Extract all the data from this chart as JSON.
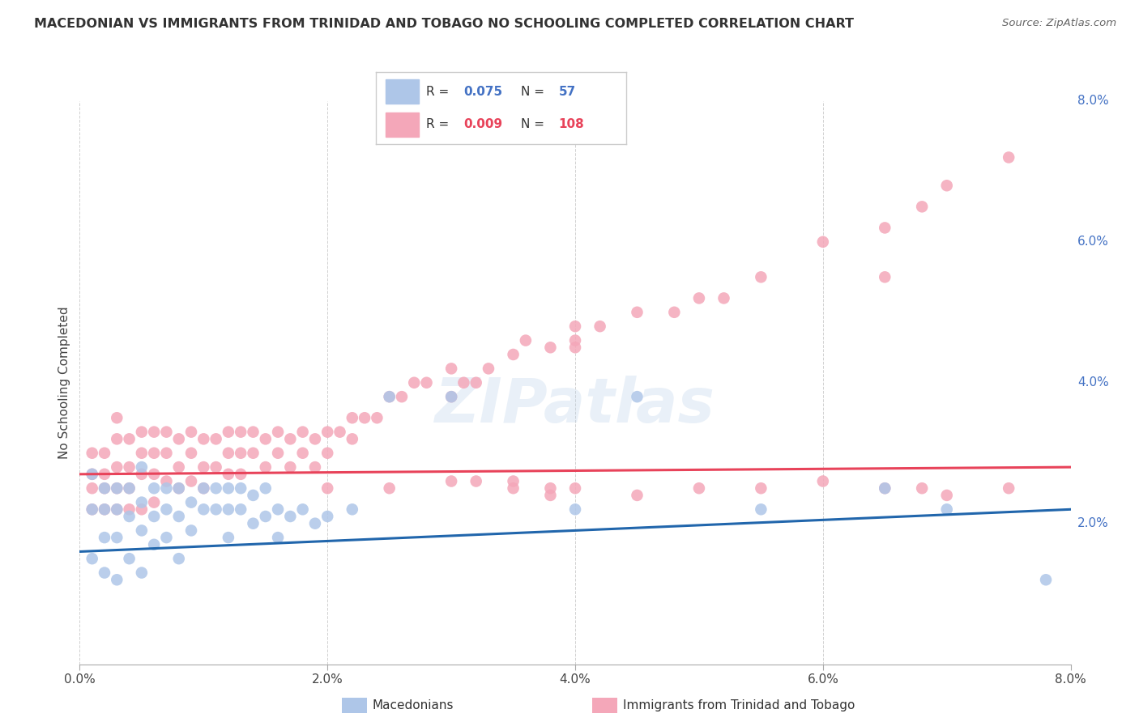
{
  "title": "MACEDONIAN VS IMMIGRANTS FROM TRINIDAD AND TOBAGO NO SCHOOLING COMPLETED CORRELATION CHART",
  "source": "Source: ZipAtlas.com",
  "ylabel": "No Schooling Completed",
  "xlim": [
    0.0,
    0.08
  ],
  "ylim": [
    0.0,
    0.08
  ],
  "xtick_vals": [
    0.0,
    0.02,
    0.04,
    0.06,
    0.08
  ],
  "xtick_labels": [
    "0.0%",
    "2.0%",
    "4.0%",
    "6.0%",
    "8.0%"
  ],
  "ytick_vals": [
    0.02,
    0.04,
    0.06,
    0.08
  ],
  "ytick_labels": [
    "2.0%",
    "4.0%",
    "6.0%",
    "8.0%"
  ],
  "series": [
    {
      "label": "Macedonians",
      "R": 0.075,
      "N": 57,
      "color": "#aec6e8",
      "line_color": "#2166ac",
      "line_x0": 0.0,
      "line_y0": 0.016,
      "line_x1": 0.08,
      "line_y1": 0.022
    },
    {
      "label": "Immigrants from Trinidad and Tobago",
      "R": 0.009,
      "N": 108,
      "color": "#f4a7b9",
      "line_color": "#e8435a",
      "line_x0": 0.0,
      "line_y0": 0.027,
      "line_x1": 0.08,
      "line_y1": 0.028
    }
  ],
  "blue_x": [
    0.001,
    0.001,
    0.001,
    0.002,
    0.002,
    0.002,
    0.002,
    0.003,
    0.003,
    0.003,
    0.003,
    0.004,
    0.004,
    0.004,
    0.005,
    0.005,
    0.005,
    0.005,
    0.006,
    0.006,
    0.006,
    0.007,
    0.007,
    0.007,
    0.008,
    0.008,
    0.008,
    0.009,
    0.009,
    0.01,
    0.01,
    0.011,
    0.011,
    0.012,
    0.012,
    0.012,
    0.013,
    0.013,
    0.014,
    0.014,
    0.015,
    0.015,
    0.016,
    0.016,
    0.017,
    0.018,
    0.019,
    0.02,
    0.022,
    0.025,
    0.03,
    0.04,
    0.045,
    0.055,
    0.065,
    0.07,
    0.078
  ],
  "blue_y": [
    0.027,
    0.022,
    0.015,
    0.025,
    0.022,
    0.018,
    0.013,
    0.025,
    0.022,
    0.018,
    0.012,
    0.025,
    0.021,
    0.015,
    0.028,
    0.023,
    0.019,
    0.013,
    0.025,
    0.021,
    0.017,
    0.025,
    0.022,
    0.018,
    0.025,
    0.021,
    0.015,
    0.023,
    0.019,
    0.025,
    0.022,
    0.025,
    0.022,
    0.025,
    0.022,
    0.018,
    0.025,
    0.022,
    0.024,
    0.02,
    0.025,
    0.021,
    0.022,
    0.018,
    0.021,
    0.022,
    0.02,
    0.021,
    0.022,
    0.038,
    0.038,
    0.022,
    0.038,
    0.022,
    0.025,
    0.022,
    0.012
  ],
  "pink_x": [
    0.001,
    0.001,
    0.001,
    0.001,
    0.002,
    0.002,
    0.002,
    0.002,
    0.003,
    0.003,
    0.003,
    0.003,
    0.003,
    0.004,
    0.004,
    0.004,
    0.004,
    0.005,
    0.005,
    0.005,
    0.005,
    0.006,
    0.006,
    0.006,
    0.006,
    0.007,
    0.007,
    0.007,
    0.008,
    0.008,
    0.008,
    0.009,
    0.009,
    0.009,
    0.01,
    0.01,
    0.01,
    0.011,
    0.011,
    0.012,
    0.012,
    0.012,
    0.013,
    0.013,
    0.013,
    0.014,
    0.014,
    0.015,
    0.015,
    0.016,
    0.016,
    0.017,
    0.017,
    0.018,
    0.018,
    0.019,
    0.019,
    0.02,
    0.02,
    0.021,
    0.022,
    0.022,
    0.023,
    0.024,
    0.025,
    0.026,
    0.027,
    0.028,
    0.03,
    0.03,
    0.031,
    0.032,
    0.033,
    0.035,
    0.036,
    0.038,
    0.04,
    0.042,
    0.045,
    0.048,
    0.05,
    0.052,
    0.055,
    0.06,
    0.065,
    0.068,
    0.07,
    0.075,
    0.04,
    0.04,
    0.032,
    0.035,
    0.038,
    0.038,
    0.04,
    0.045,
    0.05,
    0.055,
    0.06,
    0.065,
    0.065,
    0.068,
    0.07,
    0.075,
    0.02,
    0.025,
    0.03,
    0.035
  ],
  "pink_y": [
    0.03,
    0.027,
    0.025,
    0.022,
    0.03,
    0.027,
    0.025,
    0.022,
    0.035,
    0.032,
    0.028,
    0.025,
    0.022,
    0.032,
    0.028,
    0.025,
    0.022,
    0.033,
    0.03,
    0.027,
    0.022,
    0.033,
    0.03,
    0.027,
    0.023,
    0.033,
    0.03,
    0.026,
    0.032,
    0.028,
    0.025,
    0.033,
    0.03,
    0.026,
    0.032,
    0.028,
    0.025,
    0.032,
    0.028,
    0.033,
    0.03,
    0.027,
    0.033,
    0.03,
    0.027,
    0.033,
    0.03,
    0.032,
    0.028,
    0.033,
    0.03,
    0.032,
    0.028,
    0.033,
    0.03,
    0.032,
    0.028,
    0.033,
    0.03,
    0.033,
    0.035,
    0.032,
    0.035,
    0.035,
    0.038,
    0.038,
    0.04,
    0.04,
    0.042,
    0.038,
    0.04,
    0.04,
    0.042,
    0.044,
    0.046,
    0.045,
    0.046,
    0.048,
    0.05,
    0.05,
    0.052,
    0.052,
    0.055,
    0.06,
    0.062,
    0.065,
    0.068,
    0.072,
    0.048,
    0.045,
    0.026,
    0.026,
    0.025,
    0.024,
    0.025,
    0.024,
    0.025,
    0.025,
    0.026,
    0.025,
    0.055,
    0.025,
    0.024,
    0.025,
    0.025,
    0.025,
    0.026,
    0.025
  ]
}
